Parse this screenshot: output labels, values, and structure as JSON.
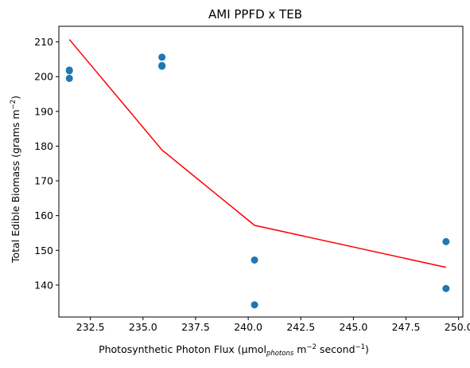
{
  "chart_data": {
    "type": "scatter",
    "title": "AMI PPFD x TEB",
    "xlabel": {
      "prefix": "Photosynthetic Photon Flux (μmol",
      "subscript": "photons",
      "mid1": " m",
      "sup1": "−2",
      "mid2": " second",
      "sup2": "−1",
      "suffix": ")"
    },
    "ylabel": {
      "prefix": "Total Edible Biomass (grams m",
      "sup": "−2",
      "suffix": ")"
    },
    "xlim": [
      231.0,
      250.2
    ],
    "ylim": [
      130.8,
      214.5
    ],
    "xticks": [
      232.5,
      235.0,
      237.5,
      240.0,
      242.5,
      245.0,
      247.5,
      250.0
    ],
    "xtick_labels": [
      "232.5",
      "235.0",
      "237.5",
      "240.0",
      "242.5",
      "245.0",
      "247.5",
      "250.0"
    ],
    "yticks": [
      140,
      150,
      160,
      170,
      180,
      190,
      200,
      210
    ],
    "ytick_labels": [
      "140",
      "150",
      "160",
      "170",
      "180",
      "190",
      "200",
      "210"
    ],
    "grid": false,
    "colors": {
      "points": "#1f77b4",
      "fit_line": "#ff0000"
    },
    "series": [
      {
        "kind": "points",
        "x": [
          231.5,
          231.5,
          231.5,
          235.9,
          235.9,
          235.9,
          240.3,
          240.3,
          249.4,
          249.4
        ],
        "y": [
          201.9,
          201.7,
          199.5,
          205.6,
          203.2,
          203.0,
          147.2,
          134.3,
          152.5,
          139.0
        ]
      },
      {
        "kind": "line",
        "x": [
          231.5,
          235.9,
          240.3,
          249.4
        ],
        "y": [
          210.7,
          178.9,
          157.2,
          145.1
        ]
      }
    ]
  }
}
